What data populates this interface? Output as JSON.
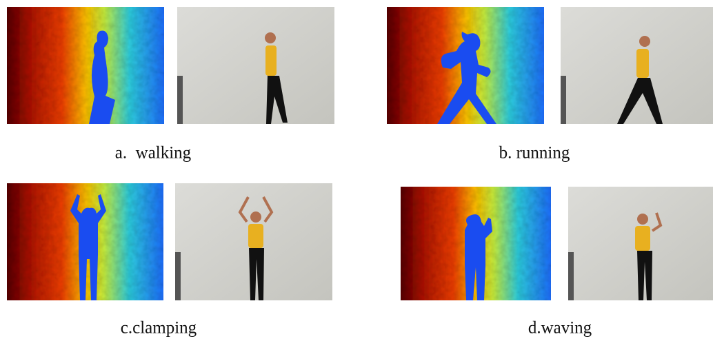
{
  "figure": {
    "panels": [
      {
        "caption": "a.  walking"
      },
      {
        "caption": "b. running"
      },
      {
        "caption": "c.clamping"
      },
      {
        "caption": "d.waving"
      }
    ]
  }
}
